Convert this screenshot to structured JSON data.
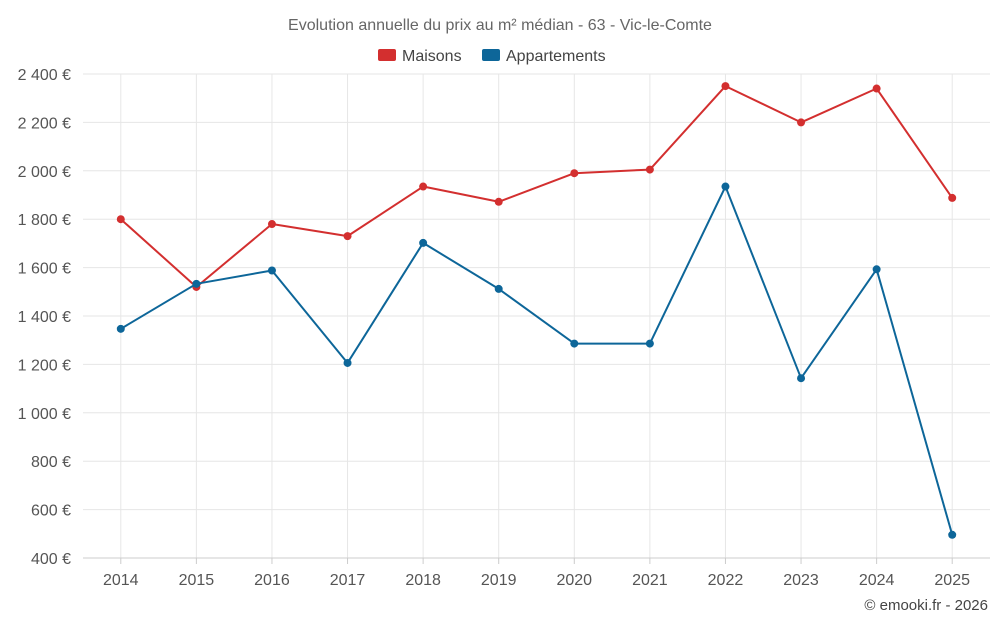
{
  "chart_data": {
    "type": "line",
    "title": "Evolution annuelle du prix au m² médian - 63 - Vic-le-Comte",
    "categories": [
      "2014",
      "2015",
      "2016",
      "2017",
      "2018",
      "2019",
      "2020",
      "2021",
      "2022",
      "2023",
      "2024",
      "2025"
    ],
    "series": [
      {
        "name": "Maisons",
        "color": "#d32f2f",
        "values": [
          1800,
          1520,
          1780,
          1730,
          1935,
          1872,
          1990,
          2005,
          2350,
          2200,
          2340,
          1888
        ]
      },
      {
        "name": "Appartements",
        "color": "#0d6699",
        "values": [
          1347,
          1533,
          1588,
          1206,
          1702,
          1512,
          1286,
          1286,
          1935,
          1143,
          1593,
          496
        ]
      }
    ],
    "ylim": [
      400,
      2400
    ],
    "yticks": [
      400,
      600,
      800,
      1000,
      1200,
      1400,
      1600,
      1800,
      2000,
      2200,
      2400
    ],
    "ytick_labels": [
      "400 €",
      "600 €",
      "800 €",
      "1 000 €",
      "1 200 €",
      "1 400 €",
      "1 600 €",
      "1 800 €",
      "2 000 €",
      "2 200 €",
      "2 400 €"
    ],
    "grid": true,
    "legend": "top-center"
  },
  "credit": "© emooki.fr - 2026"
}
